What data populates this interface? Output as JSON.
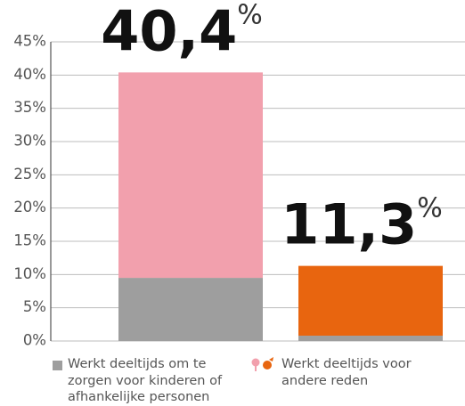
{
  "chart_data": {
    "type": "stacked_bar",
    "categories": [
      null,
      null
    ],
    "series": [
      {
        "name": "Werkt deeltijds om te zorgen voor kinderen of afhankelijke personen",
        "color": "#9e9e9e",
        "values": [
          9.5,
          0.8
        ]
      },
      {
        "name": "Werkt deeltijds voor andere reden",
        "colors": [
          "#f2a0ad",
          "#e8650f"
        ],
        "values": [
          30.9,
          10.5
        ]
      }
    ],
    "totals": [
      40.4,
      11.3
    ],
    "total_labels": [
      {
        "number": "40,4",
        "sign": "%"
      },
      {
        "number": "11,3",
        "sign": "%"
      }
    ],
    "ylim": [
      0,
      45
    ],
    "yticks": [
      {
        "value": 0,
        "label": "0%"
      },
      {
        "value": 5,
        "label": "5%"
      },
      {
        "value": 10,
        "label": "10%"
      },
      {
        "value": 15,
        "label": "15%"
      },
      {
        "value": 20,
        "label": "20%"
      },
      {
        "value": 25,
        "label": "25%"
      },
      {
        "value": 30,
        "label": "30%"
      },
      {
        "value": 35,
        "label": "35%"
      },
      {
        "value": 40,
        "label": "40%"
      },
      {
        "value": 45,
        "label": "45%"
      }
    ],
    "grid": true
  }
}
